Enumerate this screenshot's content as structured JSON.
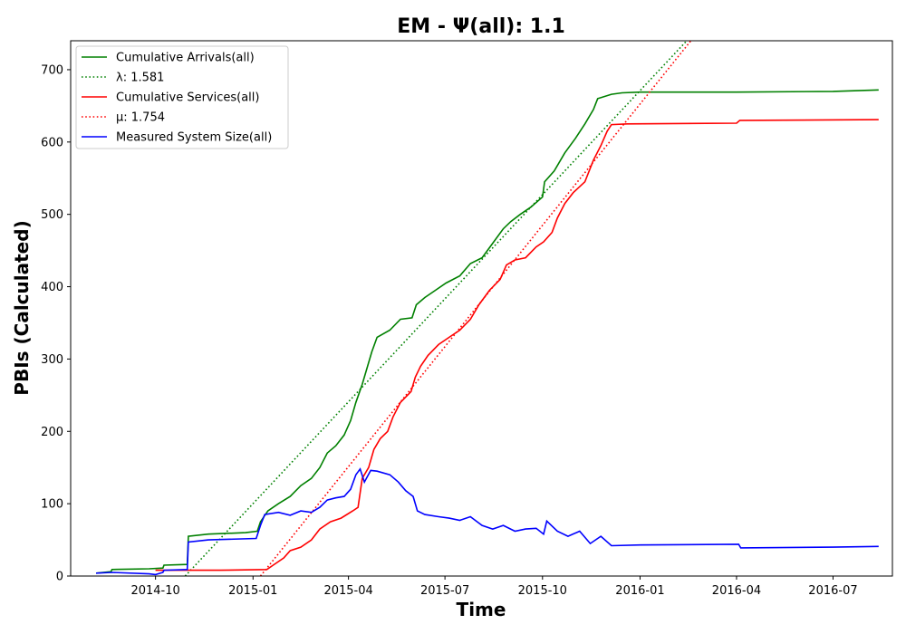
{
  "chart_data": {
    "type": "line",
    "title": "EM -  Ψ(all): 1.1",
    "xlabel": "Time",
    "ylabel": "PBIs (Calculated)",
    "xlim": [
      "2014-07-13",
      "2016-08-26"
    ],
    "ylim": [
      0,
      740
    ],
    "x_ticks": [
      "2014-10",
      "2015-01",
      "2015-04",
      "2015-07",
      "2015-10",
      "2016-01",
      "2016-04",
      "2016-07"
    ],
    "x_tick_dates": [
      "2014-10-01",
      "2015-01-01",
      "2015-04-01",
      "2015-07-01",
      "2015-10-01",
      "2016-01-01",
      "2016-04-01",
      "2016-07-01"
    ],
    "y_ticks": [
      0,
      100,
      200,
      300,
      400,
      500,
      600,
      700
    ],
    "grid": false,
    "legend_position": "top-left",
    "legend": [
      {
        "label": "Cumulative Arrivals(all)",
        "color": "#008000",
        "style": "solid"
      },
      {
        "label": "λ: 1.581",
        "color": "#008000",
        "style": "dotted"
      },
      {
        "label": "Cumulative Services(all)",
        "color": "#ff0000",
        "style": "solid"
      },
      {
        "label": "μ: 1.754",
        "color": "#ff0000",
        "style": "dotted"
      },
      {
        "label": "Measured System Size(all)",
        "color": "#0000ff",
        "style": "solid"
      }
    ],
    "series": [
      {
        "name": "Cumulative Arrivals(all)",
        "color": "#008000",
        "style": "solid",
        "points": [
          [
            "2014-08-06",
            4
          ],
          [
            "2014-08-20",
            6
          ],
          [
            "2014-08-21",
            9
          ],
          [
            "2014-09-25",
            10
          ],
          [
            "2014-10-08",
            11
          ],
          [
            "2014-10-09",
            15
          ],
          [
            "2014-10-31",
            16
          ],
          [
            "2014-11-01",
            55
          ],
          [
            "2014-11-20",
            58
          ],
          [
            "2014-12-25",
            60
          ],
          [
            "2015-01-05",
            62
          ],
          [
            "2015-01-08",
            75
          ],
          [
            "2015-01-15",
            90
          ],
          [
            "2015-01-25",
            100
          ],
          [
            "2015-02-05",
            110
          ],
          [
            "2015-02-15",
            125
          ],
          [
            "2015-02-25",
            135
          ],
          [
            "2015-03-05",
            150
          ],
          [
            "2015-03-12",
            170
          ],
          [
            "2015-03-20",
            180
          ],
          [
            "2015-03-28",
            195
          ],
          [
            "2015-04-03",
            215
          ],
          [
            "2015-04-08",
            240
          ],
          [
            "2015-04-14",
            265
          ],
          [
            "2015-04-19",
            290
          ],
          [
            "2015-04-23",
            310
          ],
          [
            "2015-04-28",
            330
          ],
          [
            "2015-05-10",
            340
          ],
          [
            "2015-05-20",
            355
          ],
          [
            "2015-05-31",
            357
          ],
          [
            "2015-06-04",
            375
          ],
          [
            "2015-06-12",
            385
          ],
          [
            "2015-06-22",
            395
          ],
          [
            "2015-07-02",
            405
          ],
          [
            "2015-07-15",
            415
          ],
          [
            "2015-07-25",
            432
          ],
          [
            "2015-08-05",
            440
          ],
          [
            "2015-08-15",
            460
          ],
          [
            "2015-08-25",
            480
          ],
          [
            "2015-09-01",
            490
          ],
          [
            "2015-09-10",
            500
          ],
          [
            "2015-09-20",
            510
          ],
          [
            "2015-10-01",
            524
          ],
          [
            "2015-10-03",
            545
          ],
          [
            "2015-10-12",
            560
          ],
          [
            "2015-10-22",
            585
          ],
          [
            "2015-11-01",
            605
          ],
          [
            "2015-11-10",
            625
          ],
          [
            "2015-11-18",
            645
          ],
          [
            "2015-11-22",
            660
          ],
          [
            "2015-12-05",
            666
          ],
          [
            "2015-12-15",
            668
          ],
          [
            "2016-01-01",
            669
          ],
          [
            "2016-04-01",
            669
          ],
          [
            "2016-07-01",
            670
          ],
          [
            "2016-08-13",
            672
          ]
        ]
      },
      {
        "name": "λ: 1.581",
        "color": "#008000",
        "style": "dotted",
        "points": [
          [
            "2014-10-29",
            0
          ],
          [
            "2016-02-14",
            740
          ]
        ]
      },
      {
        "name": "Cumulative Services(all)",
        "color": "#ff0000",
        "style": "solid",
        "points": [
          [
            "2014-10-01",
            8
          ],
          [
            "2014-12-01",
            8
          ],
          [
            "2015-01-14",
            9
          ],
          [
            "2015-01-20",
            15
          ],
          [
            "2015-01-30",
            25
          ],
          [
            "2015-02-05",
            35
          ],
          [
            "2015-02-15",
            40
          ],
          [
            "2015-02-25",
            50
          ],
          [
            "2015-03-05",
            65
          ],
          [
            "2015-03-15",
            75
          ],
          [
            "2015-03-25",
            80
          ],
          [
            "2015-04-05",
            90
          ],
          [
            "2015-04-10",
            95
          ],
          [
            "2015-04-14",
            135
          ],
          [
            "2015-04-20",
            150
          ],
          [
            "2015-04-25",
            175
          ],
          [
            "2015-05-01",
            190
          ],
          [
            "2015-05-08",
            200
          ],
          [
            "2015-05-13",
            220
          ],
          [
            "2015-05-20",
            240
          ],
          [
            "2015-05-30",
            255
          ],
          [
            "2015-06-03",
            275
          ],
          [
            "2015-06-08",
            290
          ],
          [
            "2015-06-15",
            305
          ],
          [
            "2015-06-25",
            320
          ],
          [
            "2015-07-05",
            330
          ],
          [
            "2015-07-15",
            340
          ],
          [
            "2015-07-25",
            355
          ],
          [
            "2015-08-02",
            375
          ],
          [
            "2015-08-12",
            395
          ],
          [
            "2015-08-22",
            410
          ],
          [
            "2015-08-28",
            430
          ],
          [
            "2015-09-05",
            437
          ],
          [
            "2015-09-15",
            440
          ],
          [
            "2015-09-25",
            455
          ],
          [
            "2015-10-02",
            462
          ],
          [
            "2015-10-10",
            475
          ],
          [
            "2015-10-15",
            495
          ],
          [
            "2015-10-22",
            515
          ],
          [
            "2015-10-30",
            530
          ],
          [
            "2015-11-10",
            545
          ],
          [
            "2015-11-18",
            575
          ],
          [
            "2015-11-25",
            595
          ],
          [
            "2015-12-01",
            615
          ],
          [
            "2015-12-05",
            624
          ],
          [
            "2015-12-20",
            625
          ],
          [
            "2016-04-01",
            626
          ],
          [
            "2016-04-04",
            630
          ],
          [
            "2016-08-13",
            631
          ]
        ]
      },
      {
        "name": "μ: 1.754",
        "color": "#ff0000",
        "style": "dotted",
        "points": [
          [
            "2015-01-08",
            0
          ],
          [
            "2016-02-18",
            740
          ]
        ]
      },
      {
        "name": "Measured System Size(all)",
        "color": "#0000ff",
        "style": "solid",
        "points": [
          [
            "2014-08-06",
            4
          ],
          [
            "2014-08-21",
            5
          ],
          [
            "2014-09-25",
            3
          ],
          [
            "2014-10-01",
            2
          ],
          [
            "2014-10-08",
            5
          ],
          [
            "2014-10-09",
            8
          ],
          [
            "2014-10-31",
            9
          ],
          [
            "2014-11-01",
            47
          ],
          [
            "2014-11-20",
            50
          ],
          [
            "2015-01-04",
            52
          ],
          [
            "2015-01-08",
            70
          ],
          [
            "2015-01-12",
            85
          ],
          [
            "2015-01-25",
            88
          ],
          [
            "2015-02-05",
            84
          ],
          [
            "2015-02-15",
            90
          ],
          [
            "2015-02-25",
            88
          ],
          [
            "2015-03-05",
            95
          ],
          [
            "2015-03-12",
            105
          ],
          [
            "2015-03-20",
            108
          ],
          [
            "2015-03-28",
            110
          ],
          [
            "2015-04-03",
            120
          ],
          [
            "2015-04-08",
            140
          ],
          [
            "2015-04-12",
            148
          ],
          [
            "2015-04-16",
            130
          ],
          [
            "2015-04-22",
            146
          ],
          [
            "2015-04-28",
            145
          ],
          [
            "2015-05-10",
            140
          ],
          [
            "2015-05-18",
            130
          ],
          [
            "2015-05-25",
            118
          ],
          [
            "2015-06-01",
            110
          ],
          [
            "2015-06-05",
            90
          ],
          [
            "2015-06-12",
            85
          ],
          [
            "2015-06-25",
            82
          ],
          [
            "2015-07-05",
            80
          ],
          [
            "2015-07-15",
            77
          ],
          [
            "2015-07-25",
            82
          ],
          [
            "2015-08-05",
            70
          ],
          [
            "2015-08-15",
            65
          ],
          [
            "2015-08-25",
            70
          ],
          [
            "2015-09-05",
            62
          ],
          [
            "2015-09-15",
            65
          ],
          [
            "2015-09-25",
            66
          ],
          [
            "2015-10-02",
            58
          ],
          [
            "2015-10-05",
            76
          ],
          [
            "2015-10-15",
            62
          ],
          [
            "2015-10-25",
            55
          ],
          [
            "2015-11-05",
            62
          ],
          [
            "2015-11-15",
            45
          ],
          [
            "2015-11-25",
            55
          ],
          [
            "2015-12-05",
            42
          ],
          [
            "2016-01-01",
            43
          ],
          [
            "2016-04-03",
            44
          ],
          [
            "2016-04-05",
            39
          ],
          [
            "2016-07-01",
            40
          ],
          [
            "2016-08-13",
            41
          ]
        ]
      }
    ]
  }
}
